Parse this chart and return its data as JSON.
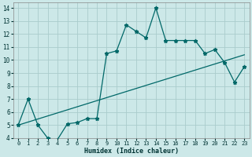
{
  "xlabel": "Humidex (Indice chaleur)",
  "bg_color": "#cce8e8",
  "grid_color": "#aacccc",
  "line_color": "#006868",
  "xlim": [
    -0.5,
    23.5
  ],
  "ylim": [
    4,
    14.4
  ],
  "x_ticks": [
    0,
    1,
    2,
    3,
    4,
    5,
    6,
    7,
    8,
    9,
    10,
    11,
    12,
    13,
    14,
    15,
    16,
    17,
    18,
    19,
    20,
    21,
    22,
    23
  ],
  "y_ticks": [
    4,
    5,
    6,
    7,
    8,
    9,
    10,
    11,
    12,
    13,
    14
  ],
  "curve1_x": [
    0,
    1,
    2,
    3,
    4,
    5,
    6,
    7,
    8,
    9,
    10,
    11,
    12,
    13,
    14,
    15,
    16,
    17,
    18,
    19,
    20,
    21,
    22,
    23
  ],
  "curve1_y": [
    5,
    7,
    5,
    4,
    3.9,
    5.1,
    5.2,
    5.5,
    5.5,
    10.5,
    10.7,
    12.7,
    12.2,
    11.7,
    14.0,
    11.5,
    11.5,
    11.5,
    11.5,
    10.5,
    10.8,
    9.8,
    8.3,
    9.5
  ],
  "curve2_x": [
    0,
    23
  ],
  "curve2_y": [
    5.0,
    10.4
  ]
}
